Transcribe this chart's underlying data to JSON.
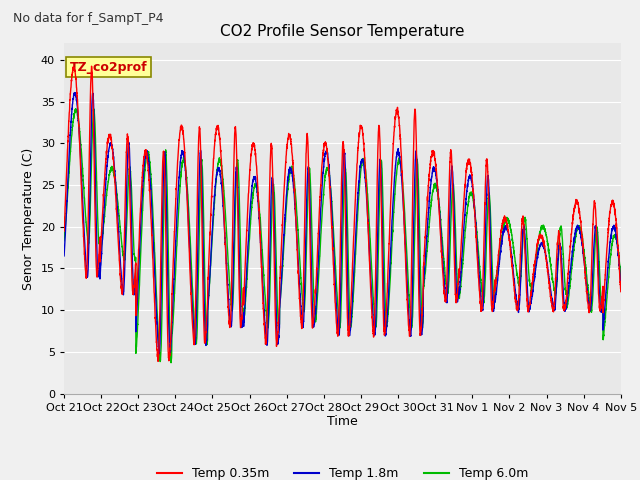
{
  "title": "CO2 Profile Sensor Temperature",
  "subtitle": "No data for f_SampT_P4",
  "ylabel": "Senor Temperature (C)",
  "xlabel": "Time",
  "annotation": "TZ_co2prof",
  "ylim": [
    0,
    42
  ],
  "yticks": [
    0,
    5,
    10,
    15,
    20,
    25,
    30,
    35,
    40
  ],
  "xtick_labels": [
    "Oct 21",
    "Oct 22",
    "Oct 23",
    "Oct 24",
    "Oct 25",
    "Oct 26",
    "Oct 27",
    "Oct 28",
    "Oct 29",
    "Oct 30",
    "Oct 31",
    "Nov 1",
    "Nov 2",
    "Nov 3",
    "Nov 4",
    "Nov 5"
  ],
  "bg_color": "#e8e8e8",
  "fig_color": "#f0f0f0",
  "line_colors": [
    "#ff0000",
    "#0000cc",
    "#00bb00"
  ],
  "legend_labels": [
    "Temp 0.35m",
    "Temp 1.8m",
    "Temp 6.0m"
  ],
  "line_width": 1.0,
  "title_fontsize": 11,
  "label_fontsize": 9,
  "tick_fontsize": 8,
  "subtitle_fontsize": 9
}
